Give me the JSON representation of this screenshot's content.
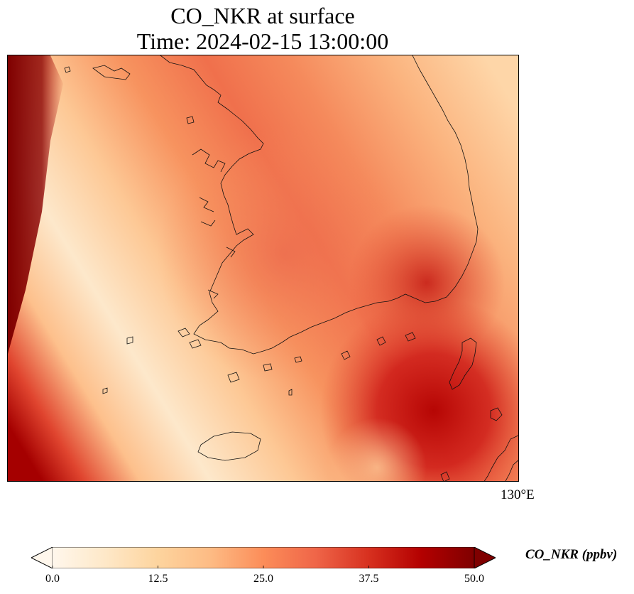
{
  "title": {
    "line1": "CO_NKR at surface",
    "line2": "Time: 2024-02-15 13:00:00"
  },
  "map": {
    "variable": "CO_NKR",
    "level": "surface",
    "colormap": "OrRd",
    "lon_tick_labels": [
      "130°E"
    ],
    "features": [
      "korean-peninsula-coastline",
      "jeju-island",
      "tsushima-island",
      "japan-coast"
    ]
  },
  "colorbar": {
    "label": "CO_NKR (ppbv)",
    "min": 0.0,
    "max": 50.0,
    "extend": "both",
    "ticks": [
      "0.0",
      "12.5",
      "25.0",
      "37.5",
      "50.0"
    ],
    "tick_values": [
      0.0,
      12.5,
      25.0,
      37.5,
      50.0
    ],
    "colors": [
      "#fff7ec",
      "#fee8c8",
      "#fdd49e",
      "#fdbb84",
      "#fc8d59",
      "#ef6548",
      "#d7301f",
      "#b30000",
      "#7f0000"
    ]
  }
}
